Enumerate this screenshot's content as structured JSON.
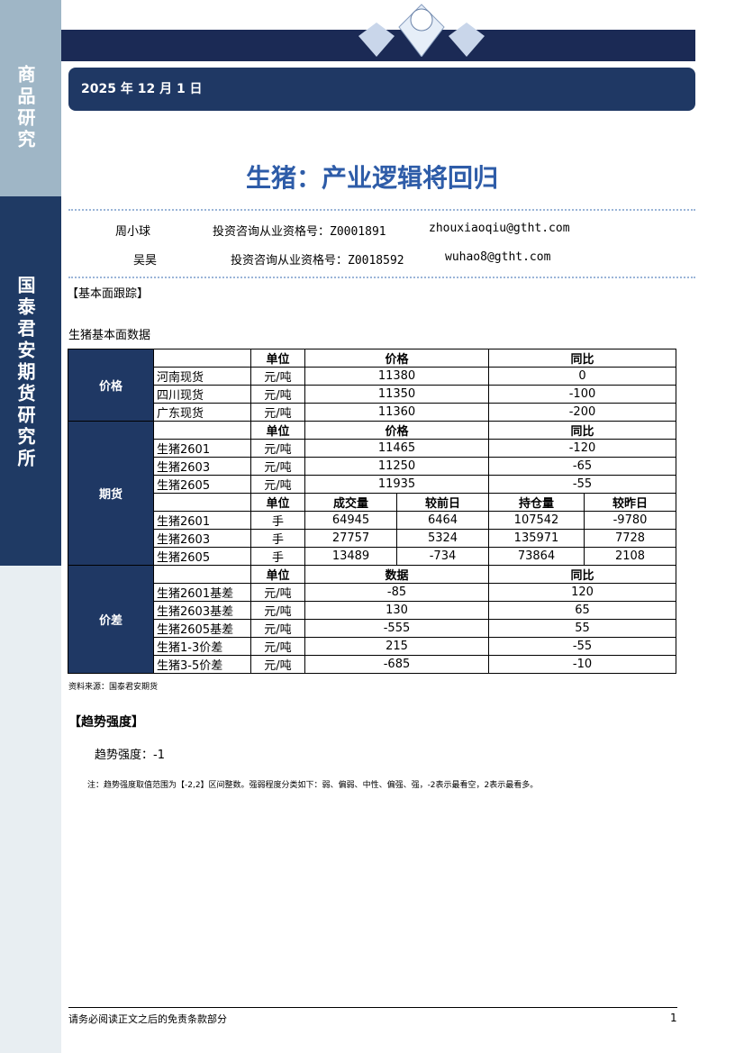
{
  "sidebar": {
    "top": "商品研究",
    "mid": "国泰君安期货研究所"
  },
  "date": "2025 年 12 月 1 日",
  "title": "生猪：产业逻辑将回归",
  "authors": [
    {
      "name": "周小球",
      "cert": "投资咨询从业资格号：Z0001891",
      "email": "zhouxiaoqiu@gtht.com"
    },
    {
      "name": "吴昊",
      "cert": "投资咨询从业资格号：Z0018592",
      "email": "wuhao8@gtht.com"
    }
  ],
  "section1": "【基本面跟踪】",
  "table_title": "生猪基本面数据",
  "table": {
    "price": {
      "cat": "价格",
      "headers": [
        "单位",
        "价格",
        "同比"
      ],
      "rows": [
        [
          "河南现货",
          "元/吨",
          "11380",
          "0"
        ],
        [
          "四川现货",
          "元/吨",
          "11350",
          "-100"
        ],
        [
          "广东现货",
          "元/吨",
          "11360",
          "-200"
        ]
      ]
    },
    "futures": {
      "cat": "期货",
      "headers": [
        "单位",
        "价格",
        "同比"
      ],
      "rows": [
        [
          "生猪2601",
          "元/吨",
          "11465",
          "-120"
        ],
        [
          "生猪2603",
          "元/吨",
          "11250",
          "-65"
        ],
        [
          "生猪2605",
          "元/吨",
          "11935",
          "-55"
        ]
      ],
      "headers2": [
        "单位",
        "成交量",
        "较前日",
        "持仓量",
        "较昨日"
      ],
      "rows2": [
        [
          "生猪2601",
          "手",
          "64945",
          "6464",
          "107542",
          "-9780"
        ],
        [
          "生猪2603",
          "手",
          "27757",
          "5324",
          "135971",
          "7728"
        ],
        [
          "生猪2605",
          "手",
          "13489",
          "-734",
          "73864",
          "2108"
        ]
      ]
    },
    "spread": {
      "cat": "价差",
      "headers": [
        "单位",
        "数据",
        "同比"
      ],
      "rows": [
        [
          "生猪2601基差",
          "元/吨",
          "-85",
          "120"
        ],
        [
          "生猪2603基差",
          "元/吨",
          "130",
          "65"
        ],
        [
          "生猪2605基差",
          "元/吨",
          "-555",
          "55"
        ],
        [
          "生猪1-3价差",
          "元/吨",
          "215",
          "-55"
        ],
        [
          "生猪3-5价差",
          "元/吨",
          "-685",
          "-10"
        ]
      ]
    }
  },
  "source": "资料来源：国泰君安期货",
  "section2": "【趋势强度】",
  "trend": "趋势强度：-1",
  "note": "注：趋势强度取值范围为【-2,2】区间整数。强弱程度分类如下：弱、偏弱、中性、偏强、强，-2表示最看空，2表示最看多。",
  "footer": "请务必阅读正文之后的免责条款部分",
  "page": "1",
  "logo_text": "国泰君安期货"
}
